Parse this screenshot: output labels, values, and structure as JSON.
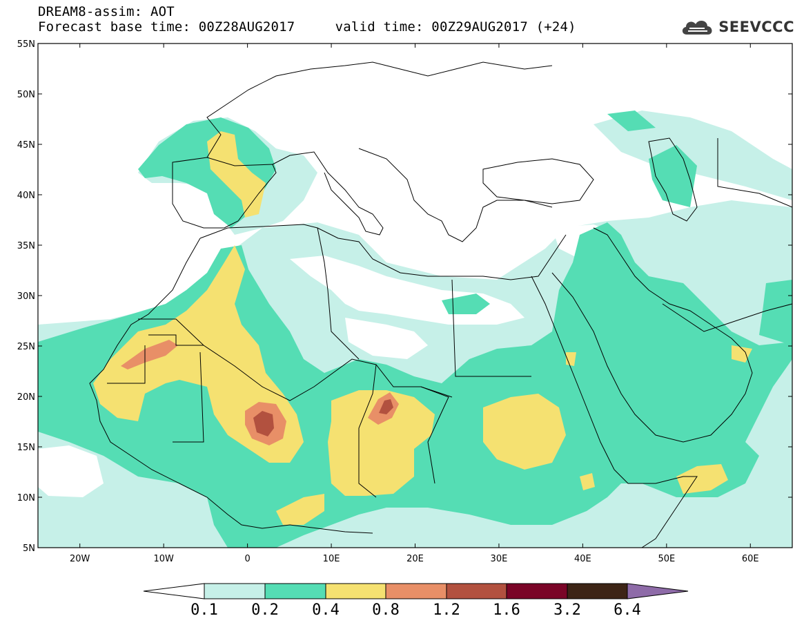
{
  "header": {
    "line1": "DREAM8-assim: AOT",
    "line2": "Forecast base time: 00Z28AUG2017     valid time: 00Z29AUG2017 (+24)"
  },
  "logo": {
    "text": "SEEVCCC",
    "icon": "cloud-icon"
  },
  "map": {
    "lon_range": [
      -25,
      65
    ],
    "lat_range": [
      5,
      55
    ],
    "y_ticks": [
      "55N",
      "50N",
      "45N",
      "40N",
      "35N",
      "30N",
      "25N",
      "20N",
      "15N",
      "10N",
      "5N"
    ],
    "x_ticks": [
      "20W",
      "10W",
      "0",
      "10E",
      "20E",
      "30E",
      "40E",
      "50E",
      "60E"
    ]
  },
  "colorbar": {
    "colors": [
      "#c6f0e8",
      "#55ddb4",
      "#f5e171",
      "#e88f67",
      "#b2513f",
      "#7a0527",
      "#3d2416",
      "#8e6ba8"
    ],
    "under_color": "#ffffff",
    "labels": [
      "0.1",
      "0.2",
      "0.4",
      "0.8",
      "1.2",
      "1.6",
      "3.2",
      "6.4"
    ]
  }
}
